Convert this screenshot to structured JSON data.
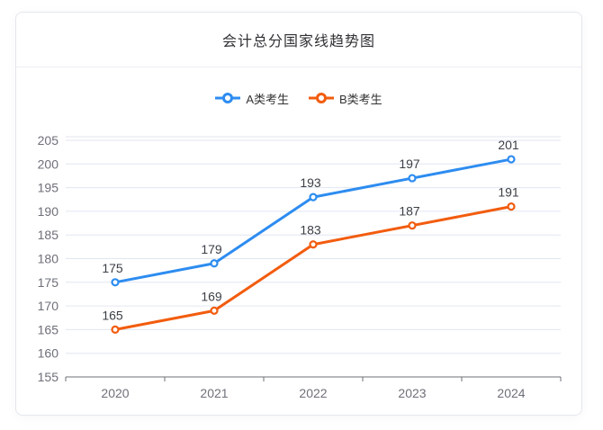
{
  "card": {
    "title": "会计总分国家线趋势图"
  },
  "colors": {
    "series_a": "#2D8CF0",
    "series_b": "#F25C0E",
    "grid_line": "#E0E6F1",
    "axis_line": "#6E7079",
    "axis_label": "#6E7079",
    "data_label": "#3B3F45",
    "title": "#303133",
    "card_border": "#e4e7ed",
    "header_divider": "#ebeef5",
    "marker_fill": "#ffffff"
  },
  "chart_data": {
    "type": "line",
    "title": "会计总分国家线趋势图",
    "categories": [
      "2020",
      "2021",
      "2022",
      "2023",
      "2024"
    ],
    "series": [
      {
        "name": "A类考生",
        "color": "#2D8CF0",
        "values": [
          175,
          179,
          193,
          197,
          201
        ]
      },
      {
        "name": "B类考生",
        "color": "#F25C0E",
        "values": [
          165,
          169,
          183,
          187,
          191
        ]
      }
    ],
    "xlabel": "",
    "ylabel": "",
    "ylim": [
      155,
      205
    ],
    "y_interval": 5,
    "y_ticks": [
      155,
      160,
      165,
      170,
      175,
      180,
      185,
      190,
      195,
      200,
      205
    ],
    "legend_position": "top",
    "grid": true,
    "data_labels": true,
    "marker": "empty-circle"
  }
}
